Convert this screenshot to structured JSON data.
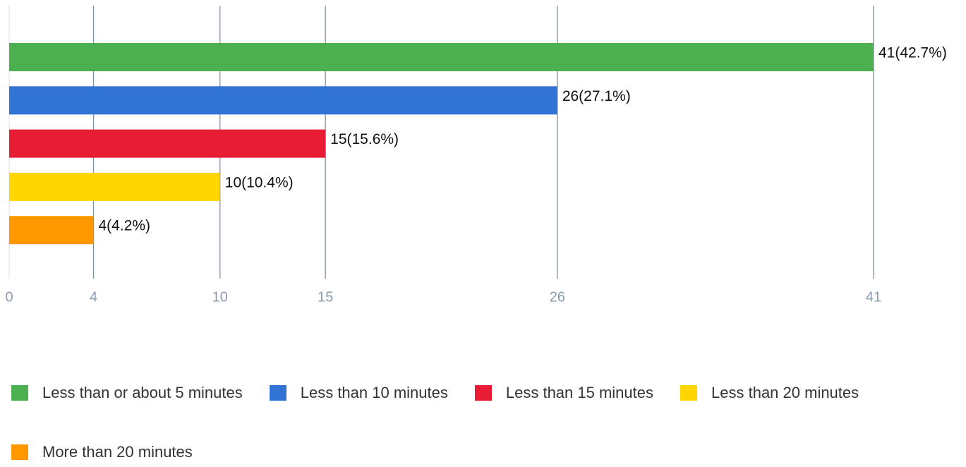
{
  "chart_data": {
    "type": "bar",
    "orientation": "horizontal",
    "series": [
      {
        "name": "Less than or about 5 minutes",
        "color": "#4caf50",
        "values": [
          41
        ],
        "value_labels": [
          "41(42.7%)"
        ]
      },
      {
        "name": "Less than 10 minutes",
        "color": "#3174d6",
        "values": [
          26
        ],
        "value_labels": [
          "26(27.1%)"
        ]
      },
      {
        "name": "Less than 15 minutes",
        "color": "#e91c36",
        "values": [
          15
        ],
        "value_labels": [
          "15(15.6%)"
        ]
      },
      {
        "name": "Less than 20 minutes",
        "color": "#ffd600",
        "values": [
          10
        ],
        "value_labels": [
          "10(10.4%)"
        ]
      },
      {
        "name": "More than 20 minutes",
        "color": "#ff9800",
        "values": [
          4
        ],
        "value_labels": [
          "4(4.2%)"
        ]
      }
    ],
    "xlim": [
      0,
      41
    ],
    "xticks": [
      0,
      4,
      10,
      15,
      26,
      41
    ],
    "grid": true,
    "legend": "bottom"
  }
}
